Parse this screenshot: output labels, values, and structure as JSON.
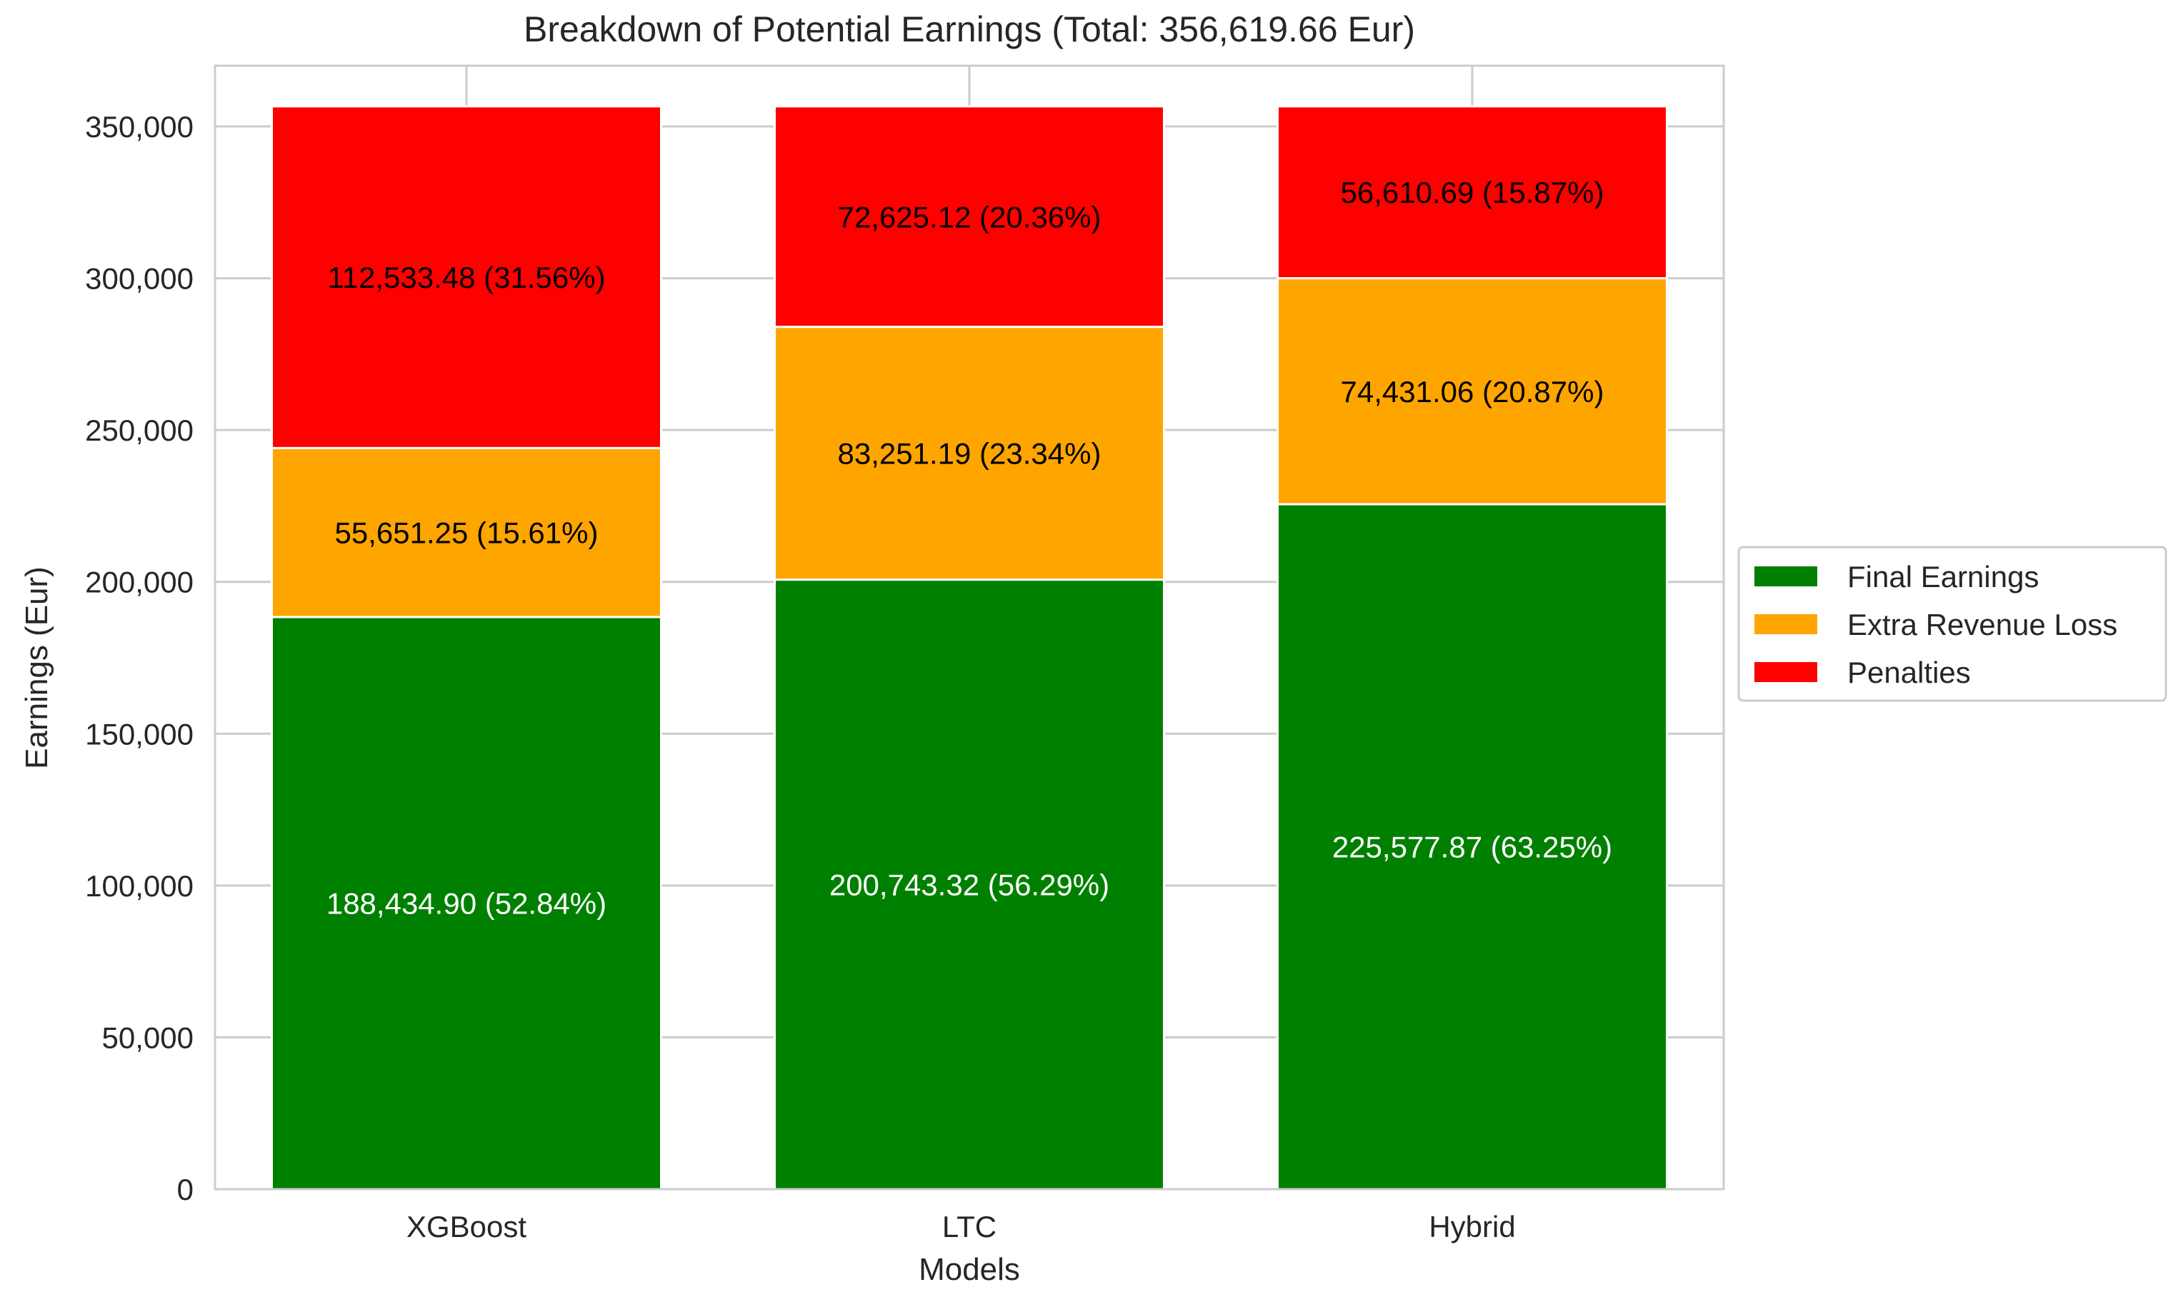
{
  "chart_data": {
    "type": "bar",
    "stacked": true,
    "title": "Breakdown of Potential Earnings (Total: 356,619.66 Eur)",
    "xlabel": "Models",
    "ylabel": "Earnings (Eur)",
    "categories": [
      "XGBoost",
      "LTC",
      "Hybrid"
    ],
    "ylim": [
      0,
      370000
    ],
    "yticks": [
      0,
      50000,
      100000,
      150000,
      200000,
      250000,
      300000,
      350000
    ],
    "ytick_labels": [
      "0",
      "50,000",
      "100,000",
      "150,000",
      "200,000",
      "250,000",
      "300,000",
      "350,000"
    ],
    "grid": true,
    "legend_position": "center-right",
    "series": [
      {
        "name": "Final Earnings",
        "color": "#008000",
        "label_color": "#ffffff",
        "values": [
          188434.9,
          200743.32,
          225577.87
        ],
        "labels": [
          "188,434.90 (52.84%)",
          "200,743.32 (56.29%)",
          "225,577.87 (63.25%)"
        ]
      },
      {
        "name": "Extra Revenue Loss",
        "color": "#ffa500",
        "label_color": "#000000",
        "values": [
          55651.25,
          83251.19,
          74431.06
        ],
        "labels": [
          "55,651.25 (15.61%)",
          "83,251.19 (23.34%)",
          "74,431.06 (20.87%)"
        ]
      },
      {
        "name": "Penalties",
        "color": "#ff0000",
        "label_color": "#000000",
        "values": [
          112533.48,
          72625.12,
          56610.69
        ],
        "labels": [
          "112,533.48 (31.56%)",
          "72,625.12 (20.36%)",
          "56,610.69 (15.87%)"
        ]
      }
    ]
  }
}
